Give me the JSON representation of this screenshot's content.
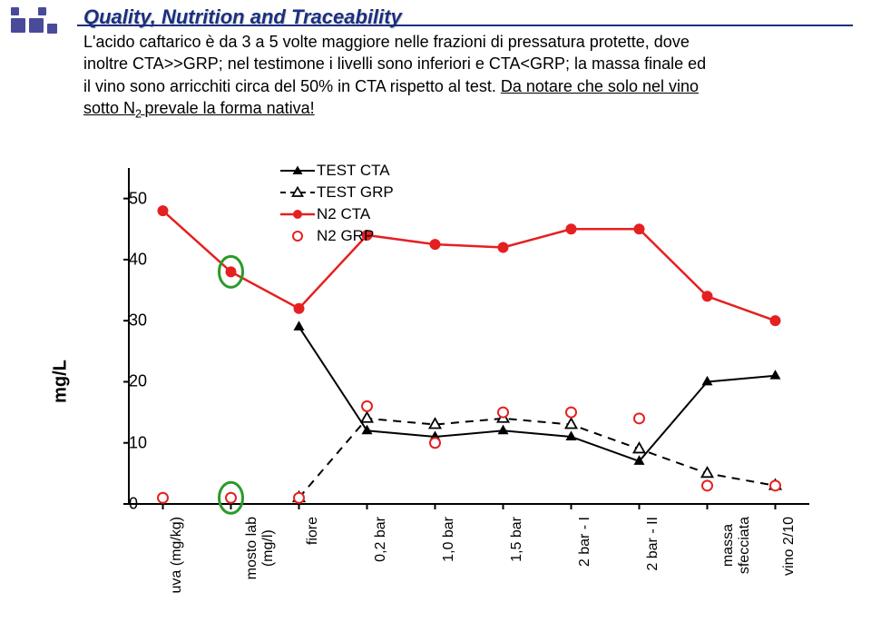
{
  "header": {
    "title": "Quality, Nutrition and Traceability",
    "decor_color": "#4a4a9a"
  },
  "body": {
    "line1": "L'acido caftarico è da 3 a 5 volte maggiore nelle frazioni di pressatura protette, dove",
    "line2a": "inoltre CTA>>GRP; nel testimone i livelli sono inferiori e CTA<GRP; la massa finale ed",
    "line3a": "il vino sono arricchiti circa del 50% in CTA rispetto al test. ",
    "line3b": "Da notare che solo nel vino",
    "line4a": "sotto N",
    "line4sub": "2 ",
    "line4b": "prevale la forma nativa!"
  },
  "chart": {
    "type": "line",
    "ylabel": "mg/L",
    "ylim": [
      0,
      55
    ],
    "yticks": [
      0,
      10,
      20,
      30,
      40,
      50
    ],
    "ytick_fontsize": 18,
    "xlabels": [
      "uva (mg/kg)",
      "mosto lab\n(mg/l)",
      "fiore",
      "0,2 bar",
      "1,0 bar",
      "1,5 bar",
      "2 bar - I",
      "2 bar - II",
      "massa\nsfecciata",
      "vino 2/10"
    ],
    "xlabel_fontsize": 16,
    "plot_bg": "#ffffff",
    "axis_color": "#000000",
    "axis_width": 2,
    "circle_color": "#2a9a2a",
    "circle_width": 3,
    "series": [
      {
        "name": "TEST CTA",
        "color": "#000000",
        "marker": "triangle-filled",
        "line": "solid",
        "line_width": 2,
        "values": [
          null,
          null,
          29,
          12,
          11,
          12,
          11,
          7,
          20,
          21
        ]
      },
      {
        "name": "TEST GRP",
        "color": "#000000",
        "marker": "triangle-open",
        "line": "dashed",
        "line_width": 2,
        "values": [
          null,
          null,
          1,
          14,
          13,
          14,
          13,
          9,
          5,
          3
        ]
      },
      {
        "name": "N2 CTA",
        "color": "#e52020",
        "marker": "circle-filled",
        "line": "solid",
        "line_width": 2.5,
        "values": [
          48,
          38,
          32,
          44,
          42.5,
          42,
          45,
          45,
          34,
          30
        ]
      },
      {
        "name": "N2 GRP",
        "color": "#e52020",
        "marker": "circle-open",
        "line": "none",
        "line_width": 0,
        "values": [
          1,
          1,
          1,
          16,
          10,
          15,
          15,
          14,
          3,
          3
        ]
      }
    ],
    "legend": {
      "fontsize": 17
    }
  }
}
